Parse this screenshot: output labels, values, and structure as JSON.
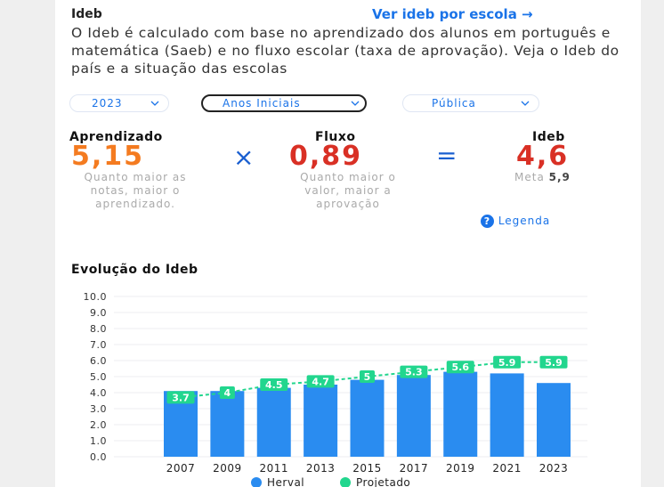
{
  "header": {
    "title": "Ideb",
    "link": "Ver ideb por escola →"
  },
  "description": "O Ideb é calculado com base no aprendizado dos alunos em português e matemática (Saeb) e no fluxo escolar (taxa de aprovação). Veja o Ideb do país e a situação das escolas",
  "filters": [
    "2023",
    "Anos Iniciais",
    "Pública"
  ],
  "metrics": {
    "aprendizado": {
      "label": "Aprendizado",
      "value": "5,15",
      "note": "Quanto maior as notas, maior o aprendizado."
    },
    "times": "×",
    "fluxo": {
      "label": "Fluxo",
      "value": "0,89",
      "note": "Quanto maior o valor, maior a aprovação"
    },
    "equals": "=",
    "ideb": {
      "label": "Ideb",
      "value": "4,6",
      "meta_label": "Meta",
      "meta_value": "5,9"
    },
    "legend_icon": "?",
    "legend_link": "Legenda"
  },
  "chart_data": {
    "type": "bar",
    "title": "Evolução do Ideb",
    "categories": [
      "2007",
      "2009",
      "2011",
      "2013",
      "2015",
      "2017",
      "2019",
      "2021",
      "2023"
    ],
    "series": [
      {
        "name": "Herval",
        "type": "bar",
        "color": "#2a8cf0",
        "values": [
          4.1,
          4.1,
          4.3,
          4.5,
          4.8,
          5.1,
          5.3,
          5.2,
          4.6
        ]
      },
      {
        "name": "Projetado",
        "type": "line",
        "color": "#22d68e",
        "values": [
          3.7,
          4,
          4.5,
          4.7,
          5,
          5.3,
          5.6,
          5.9,
          5.9
        ]
      }
    ],
    "ylim": [
      0,
      10
    ],
    "yticks": [
      {
        "value": 0,
        "label": "0.0"
      },
      {
        "value": 1,
        "label": "1.0"
      },
      {
        "value": 2,
        "label": "2.0"
      },
      {
        "value": 3,
        "label": "3.0"
      },
      {
        "value": 4,
        "label": "4.0"
      },
      {
        "value": 5,
        "label": "5.0"
      },
      {
        "value": 6,
        "label": "6.0"
      },
      {
        "value": 7,
        "label": "7.0"
      },
      {
        "value": 8,
        "label": "8.0"
      },
      {
        "value": 9,
        "label": "9.0"
      },
      {
        "value": 10,
        "label": "10.0"
      }
    ],
    "grid": true
  }
}
